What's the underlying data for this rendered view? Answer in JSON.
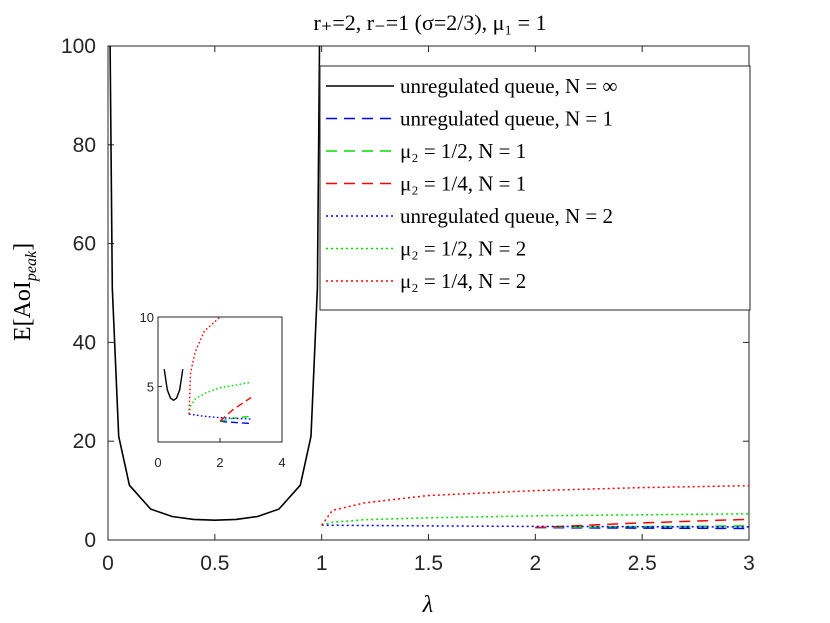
{
  "chart_data": {
    "type": "line",
    "title": "r₊=2, r₋=1 (σ=2/3), μ₁ = 1",
    "xlabel": "λ",
    "ylabel": "E[AoI",
    "ylabel_sub": "peak",
    "ylabel_close": "]",
    "xlim": [
      0,
      3
    ],
    "ylim": [
      0,
      100
    ],
    "xticks": [
      "0",
      "0.5",
      "1",
      "1.5",
      "2",
      "2.5",
      "3"
    ],
    "yticks": [
      "0",
      "20",
      "40",
      "60",
      "80",
      "100"
    ],
    "grid": false,
    "legend_position": "top-right",
    "series": [
      {
        "name": "unregulated queue, N = ∞",
        "color": "#000000",
        "style": "solid",
        "x": [
          0.01,
          0.02,
          0.05,
          0.1,
          0.2,
          0.3,
          0.4,
          0.5,
          0.6,
          0.7,
          0.8,
          0.9,
          0.95,
          0.98,
          0.99
        ],
        "y": [
          100,
          51,
          21,
          11.1,
          6.25,
          4.76,
          4.17,
          4.0,
          4.17,
          4.76,
          6.25,
          11.1,
          21,
          51,
          100
        ]
      },
      {
        "name": "unregulated queue, N = 1",
        "color": "#0000ff",
        "style": "dashed",
        "x": [
          2.0,
          2.2,
          2.4,
          2.6,
          2.8,
          3.0
        ],
        "y": [
          2.5,
          2.45,
          2.42,
          2.39,
          2.36,
          2.33
        ]
      },
      {
        "name": "μ₂ = 1/2, N = 1",
        "color": "#00dd00",
        "style": "dashed",
        "x": [
          2.0,
          2.2,
          2.4,
          2.6,
          2.8,
          3.0
        ],
        "y": [
          2.5,
          2.6,
          2.7,
          2.75,
          2.8,
          2.85
        ]
      },
      {
        "name": "μ₂ = 1/4, N = 1",
        "color": "#ff0000",
        "style": "dashed",
        "x": [
          2.0,
          2.2,
          2.4,
          2.6,
          2.8,
          3.0
        ],
        "y": [
          2.5,
          2.9,
          3.3,
          3.6,
          3.9,
          4.2
        ]
      },
      {
        "name": "unregulated queue, N = 2",
        "color": "#0000ff",
        "style": "dotted",
        "x": [
          1.0,
          1.5,
          2.0,
          2.5,
          3.0
        ],
        "y": [
          3.0,
          2.85,
          2.75,
          2.7,
          2.65
        ]
      },
      {
        "name": "μ₂ = 1/2, N = 2",
        "color": "#00dd00",
        "style": "dotted",
        "x": [
          1.0,
          1.05,
          1.2,
          1.5,
          2.0,
          2.5,
          3.0
        ],
        "y": [
          3.0,
          3.6,
          4.1,
          4.5,
          4.9,
          5.1,
          5.3
        ]
      },
      {
        "name": "μ₂ = 1/4, N = 2",
        "color": "#ff0000",
        "style": "dotted",
        "x": [
          1.0,
          1.05,
          1.2,
          1.5,
          2.0,
          2.5,
          3.0
        ],
        "y": [
          3.0,
          6.0,
          7.5,
          9.0,
          10.0,
          10.6,
          11.0
        ]
      }
    ],
    "inset": {
      "xlim": [
        0,
        4
      ],
      "ylim": [
        1,
        10
      ],
      "xticks": [
        "0",
        "2",
        "4"
      ],
      "yticks": [
        "5",
        "10"
      ]
    }
  }
}
